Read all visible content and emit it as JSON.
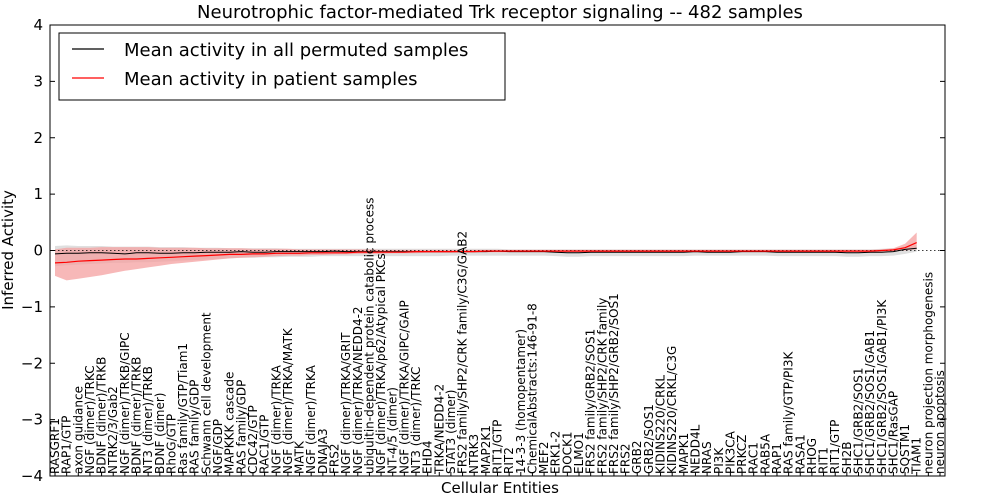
{
  "chart_data": {
    "type": "line",
    "title": "Neurotrophic factor-mediated Trk receptor signaling -- 482 samples",
    "xlabel": "Cellular Entities",
    "ylabel": "Inferred Activity",
    "ylim": [
      -4,
      4
    ],
    "yticks": [
      "4",
      "3",
      "2",
      "1",
      "0",
      "−1",
      "−2",
      "−3",
      "−4"
    ],
    "legend": {
      "placement": "top-left",
      "entries": [
        {
          "label": "Mean activity in all permuted samples",
          "color": "#000000"
        },
        {
          "label": "Mean activity in patient samples",
          "color": "#ff0000"
        }
      ]
    },
    "colors": {
      "permuted_line": "#000000",
      "permuted_band": "#d9d9d9",
      "patient_line": "#ff0000",
      "patient_band": "#f4a0a0"
    },
    "entities": [
      "RASGRF1",
      "RAP1/GTP",
      "axon guidance",
      "NGF (dimer)/TRKC",
      "BDNF (dimer)/TRKB",
      "NTRK2/3/Gab2",
      "NGF (dimer)/TRKB/GIPC",
      "BDNF (dimer)/TRKB",
      "NT3 (dimer)/TRKB",
      "BDNF (dimer)",
      "RhoG/GTP",
      "Ras family/GTP/Tiam1",
      "RAS family/GDP",
      "Schwann cell development",
      "NGF/GDP",
      "MAPKKK cascade",
      "RAS family/GDP",
      "CDC42/GTP",
      "RAC1/GTP",
      "NGF (dimer)/TRKA",
      "NGF (dimer)/TRKA/MATK",
      "MATK",
      "NGF (dimer)/TRKA",
      "DNAJA3",
      "FRS2",
      "NGF (dimer)/TRKA/GRIT",
      "NGF (dimer)/TRKA/NEDD4-2",
      "ubiquitin-dependent protein catabolic process",
      "NGF (dimer)/TRKA/p62/Atypical PKCs",
      "NT-4/5 (dimer)",
      "NGF (dimer)/TRKA/GIPC/GAIP",
      "NT3 (dimer)/TRKC",
      "EHD4",
      "TRKA/NEDD4-2",
      "STAT3 (dimer)",
      "FRS2 family/SHP2/CRK family/C3G/GAB2",
      "NTRK3",
      "MAP2K1",
      "RIT1/GTP",
      "RIT2",
      "14-3-3 (homopentamer)",
      "ChemicalAbstracts:146-91-8",
      "MEF2",
      "ERK1-2",
      "DOCK1",
      "ELMO1",
      "FRS2 family/GRB2/SOS1",
      "FRS2 family/SHP2/CRK family",
      "FRS2 family/SHP2/GRB2/SOS1",
      "FRS2",
      "GRB2",
      "GRB2/SOS1",
      "KIDINS220/CRKL",
      "KIDINS220/CRKL/C3G",
      "MAPK1",
      "NEDD4L",
      "NRAS",
      "PI3K",
      "PIK3CA",
      "PRKCZ",
      "RAC1",
      "RAB5A",
      "RAP1",
      "RAS family/GTP/PI3K",
      "RASA1",
      "RHOG",
      "RIT1",
      "RIT1/GTP",
      "SH2B",
      "SHC1/GRB2/SOS1",
      "SHC1/GRB2/SOS1/GAB1",
      "SHC1/GRB2/SOS1/GAB1/PI3K",
      "SHC1/RasGAP",
      "SQSTM1",
      "TIAM1",
      "neuron projection morphogenesis",
      "neuron apoptosis"
    ],
    "permuted_mean": [
      -0.06,
      -0.05,
      -0.05,
      -0.04,
      -0.04,
      -0.05,
      -0.06,
      -0.04,
      -0.04,
      -0.05,
      -0.05,
      -0.04,
      -0.04,
      -0.03,
      -0.03,
      -0.03,
      -0.02,
      -0.03,
      -0.03,
      -0.02,
      -0.02,
      -0.02,
      -0.02,
      -0.02,
      -0.01,
      -0.02,
      -0.02,
      -0.02,
      -0.02,
      -0.02,
      -0.02,
      -0.02,
      -0.02,
      -0.02,
      -0.02,
      -0.02,
      -0.02,
      -0.02,
      -0.01,
      -0.02,
      -0.02,
      -0.02,
      -0.02,
      -0.03,
      -0.04,
      -0.04,
      -0.03,
      -0.03,
      -0.03,
      -0.03,
      -0.03,
      -0.03,
      -0.03,
      -0.03,
      -0.03,
      -0.02,
      -0.03,
      -0.03,
      -0.03,
      -0.02,
      -0.02,
      -0.02,
      -0.03,
      -0.03,
      -0.03,
      -0.03,
      -0.03,
      -0.03,
      -0.04,
      -0.04,
      -0.03,
      -0.03,
      -0.02,
      0.02,
      0.04
    ],
    "permuted_band_upper": [
      0.08,
      0.09,
      0.08,
      0.08,
      0.08,
      0.07,
      0.07,
      0.07,
      0.07,
      0.06,
      0.06,
      0.06,
      0.05,
      0.05,
      0.05,
      0.04,
      0.04,
      0.04,
      0.04,
      0.04,
      0.03,
      0.03,
      0.03,
      0.03,
      0.03,
      0.03,
      0.03,
      0.03,
      0.03,
      0.03,
      0.03,
      0.03,
      0.03,
      0.03,
      0.03,
      0.03,
      0.03,
      0.03,
      0.03,
      0.02,
      0.02,
      0.02,
      0.02,
      0.02,
      0.02,
      0.02,
      0.02,
      0.02,
      0.02,
      0.02,
      0.02,
      0.02,
      0.02,
      0.02,
      0.02,
      0.02,
      0.02,
      0.02,
      0.02,
      0.02,
      0.02,
      0.02,
      0.02,
      0.02,
      0.02,
      0.02,
      0.02,
      0.02,
      0.02,
      0.02,
      0.02,
      0.03,
      0.04,
      0.06,
      0.1
    ],
    "permuted_band_lower": [
      -0.28,
      -0.26,
      -0.25,
      -0.24,
      -0.23,
      -0.22,
      -0.22,
      -0.21,
      -0.21,
      -0.2,
      -0.19,
      -0.18,
      -0.17,
      -0.16,
      -0.15,
      -0.14,
      -0.13,
      -0.13,
      -0.12,
      -0.12,
      -0.11,
      -0.11,
      -0.11,
      -0.1,
      -0.1,
      -0.1,
      -0.1,
      -0.1,
      -0.1,
      -0.1,
      -0.1,
      -0.1,
      -0.1,
      -0.1,
      -0.09,
      -0.09,
      -0.09,
      -0.09,
      -0.09,
      -0.09,
      -0.09,
      -0.09,
      -0.09,
      -0.1,
      -0.11,
      -0.11,
      -0.1,
      -0.1,
      -0.1,
      -0.1,
      -0.1,
      -0.1,
      -0.1,
      -0.1,
      -0.1,
      -0.09,
      -0.09,
      -0.09,
      -0.09,
      -0.09,
      -0.09,
      -0.09,
      -0.1,
      -0.1,
      -0.1,
      -0.1,
      -0.1,
      -0.1,
      -0.11,
      -0.11,
      -0.1,
      -0.1,
      -0.09,
      -0.06,
      -0.02
    ],
    "patient_mean": [
      -0.22,
      -0.21,
      -0.19,
      -0.18,
      -0.17,
      -0.16,
      -0.15,
      -0.15,
      -0.14,
      -0.13,
      -0.12,
      -0.11,
      -0.1,
      -0.09,
      -0.08,
      -0.07,
      -0.07,
      -0.06,
      -0.06,
      -0.05,
      -0.05,
      -0.05,
      -0.04,
      -0.04,
      -0.04,
      -0.04,
      -0.03,
      -0.03,
      -0.03,
      -0.03,
      -0.03,
      -0.02,
      -0.02,
      -0.02,
      -0.02,
      -0.02,
      -0.02,
      -0.01,
      -0.01,
      -0.01,
      -0.01,
      -0.01,
      -0.01,
      -0.01,
      -0.01,
      -0.01,
      -0.01,
      -0.01,
      -0.01,
      -0.01,
      -0.01,
      -0.01,
      -0.01,
      -0.01,
      -0.01,
      -0.01,
      -0.01,
      -0.01,
      -0.01,
      -0.01,
      -0.01,
      -0.01,
      -0.01,
      -0.01,
      -0.01,
      -0.01,
      -0.01,
      -0.01,
      -0.01,
      -0.01,
      -0.01,
      0.0,
      0.01,
      0.05,
      0.14
    ],
    "patient_band_upper": [
      0.02,
      0.05,
      0.05,
      0.05,
      0.06,
      0.06,
      0.06,
      0.06,
      0.06,
      0.05,
      0.05,
      0.05,
      0.05,
      0.04,
      0.04,
      0.04,
      0.04,
      0.03,
      0.03,
      0.03,
      0.03,
      0.02,
      0.02,
      0.02,
      0.02,
      0.02,
      0.02,
      0.02,
      0.01,
      0.01,
      0.01,
      0.01,
      0.01,
      0.01,
      0.01,
      0.01,
      0.01,
      0.01,
      0.01,
      0.01,
      0.01,
      0.01,
      0.01,
      0.01,
      0.01,
      0.01,
      0.01,
      0.01,
      0.01,
      0.01,
      0.01,
      0.01,
      0.01,
      0.01,
      0.01,
      0.01,
      0.01,
      0.01,
      0.01,
      0.01,
      0.01,
      0.01,
      0.01,
      0.01,
      0.01,
      0.01,
      0.01,
      0.01,
      0.01,
      0.01,
      0.01,
      0.02,
      0.04,
      0.12,
      0.32
    ],
    "patient_band_lower": [
      -0.45,
      -0.53,
      -0.5,
      -0.47,
      -0.44,
      -0.4,
      -0.36,
      -0.33,
      -0.3,
      -0.27,
      -0.24,
      -0.22,
      -0.2,
      -0.18,
      -0.16,
      -0.14,
      -0.13,
      -0.12,
      -0.11,
      -0.1,
      -0.09,
      -0.09,
      -0.08,
      -0.08,
      -0.07,
      -0.07,
      -0.06,
      -0.06,
      -0.06,
      -0.05,
      -0.05,
      -0.05,
      -0.04,
      -0.04,
      -0.04,
      -0.03,
      -0.03,
      -0.03,
      -0.03,
      -0.03,
      -0.03,
      -0.03,
      -0.03,
      -0.03,
      -0.03,
      -0.03,
      -0.03,
      -0.03,
      -0.03,
      -0.03,
      -0.03,
      -0.03,
      -0.03,
      -0.03,
      -0.03,
      -0.03,
      -0.03,
      -0.03,
      -0.03,
      -0.03,
      -0.03,
      -0.03,
      -0.03,
      -0.03,
      -0.03,
      -0.03,
      -0.03,
      -0.03,
      -0.03,
      -0.03,
      -0.03,
      -0.02,
      -0.01,
      0.0,
      0.02
    ]
  }
}
